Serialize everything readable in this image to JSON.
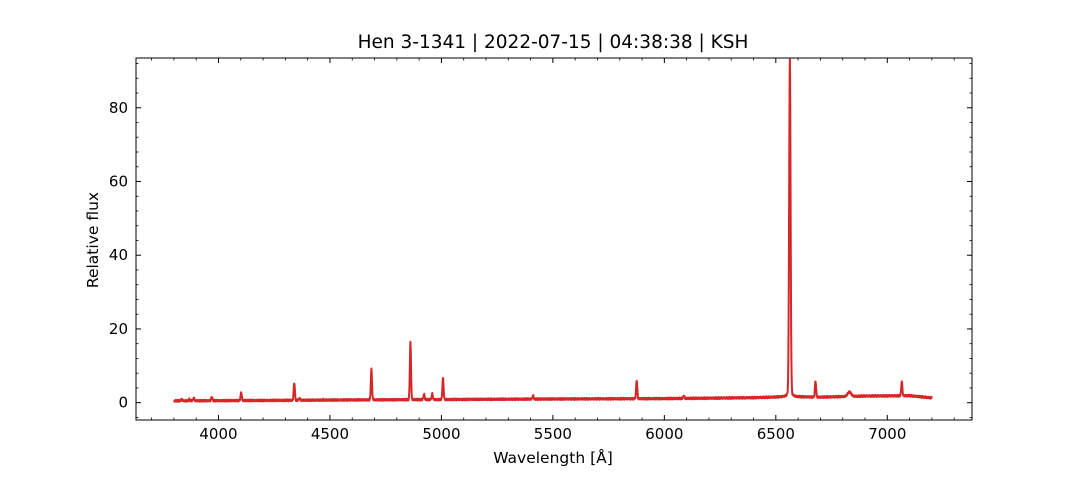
{
  "chart_data": {
    "type": "line",
    "title": "Hen 3-1341 | 2022-07-15 | 04:38:38 | KSH",
    "xlabel": "Wavelength [Å]",
    "ylabel": "Relative flux",
    "xlim": [
      3630,
      7380
    ],
    "ylim": [
      -4.7,
      93.5
    ],
    "xticks": [
      4000,
      4500,
      5000,
      5500,
      6000,
      6500,
      7000
    ],
    "xtick_labels": [
      "4000",
      "4500",
      "5000",
      "5500",
      "6000",
      "6500",
      "7000"
    ],
    "yticks": [
      0,
      20,
      40,
      60,
      80
    ],
    "ytick_labels": [
      "0",
      "20",
      "40",
      "60",
      "80"
    ],
    "grid": false,
    "legend": "none",
    "series": [
      {
        "color": "#d62728",
        "x_range": [
          3800,
          7200
        ],
        "continuum": [
          [
            3800,
            0.5
          ],
          [
            4200,
            0.6
          ],
          [
            4600,
            0.75
          ],
          [
            5000,
            0.85
          ],
          [
            5500,
            1.0
          ],
          [
            6000,
            1.1
          ],
          [
            6400,
            1.35
          ],
          [
            6550,
            1.6
          ],
          [
            6700,
            1.5
          ],
          [
            6900,
            1.8
          ],
          [
            7100,
            1.9
          ],
          [
            7200,
            1.3
          ]
        ],
        "emission_lines": [
          {
            "x": 3835,
            "peak": 0.9
          },
          {
            "x": 3869,
            "peak": 0.9
          },
          {
            "x": 3889,
            "peak": 1.3
          },
          {
            "x": 3970,
            "peak": 1.6
          },
          {
            "x": 4102,
            "peak": 2.8
          },
          {
            "x": 4340,
            "peak": 5.4
          },
          {
            "x": 4363,
            "peak": 1.2
          },
          {
            "x": 4471,
            "peak": 0.8
          },
          {
            "x": 4686,
            "peak": 9.0
          },
          {
            "x": 4861,
            "peak": 16.3
          },
          {
            "x": 4922,
            "peak": 2.3
          },
          {
            "x": 4959,
            "peak": 2.4
          },
          {
            "x": 5007,
            "peak": 6.6
          },
          {
            "x": 5411,
            "peak": 1.9
          },
          {
            "x": 5876,
            "peak": 6.1
          },
          {
            "x": 6087,
            "peak": 1.9
          },
          {
            "x": 6563,
            "peak": 89.5
          },
          {
            "x": 6678,
            "peak": 5.8
          },
          {
            "x": 6830,
            "peak": 2.9
          },
          {
            "x": 7065,
            "peak": 5.7
          }
        ]
      }
    ]
  }
}
